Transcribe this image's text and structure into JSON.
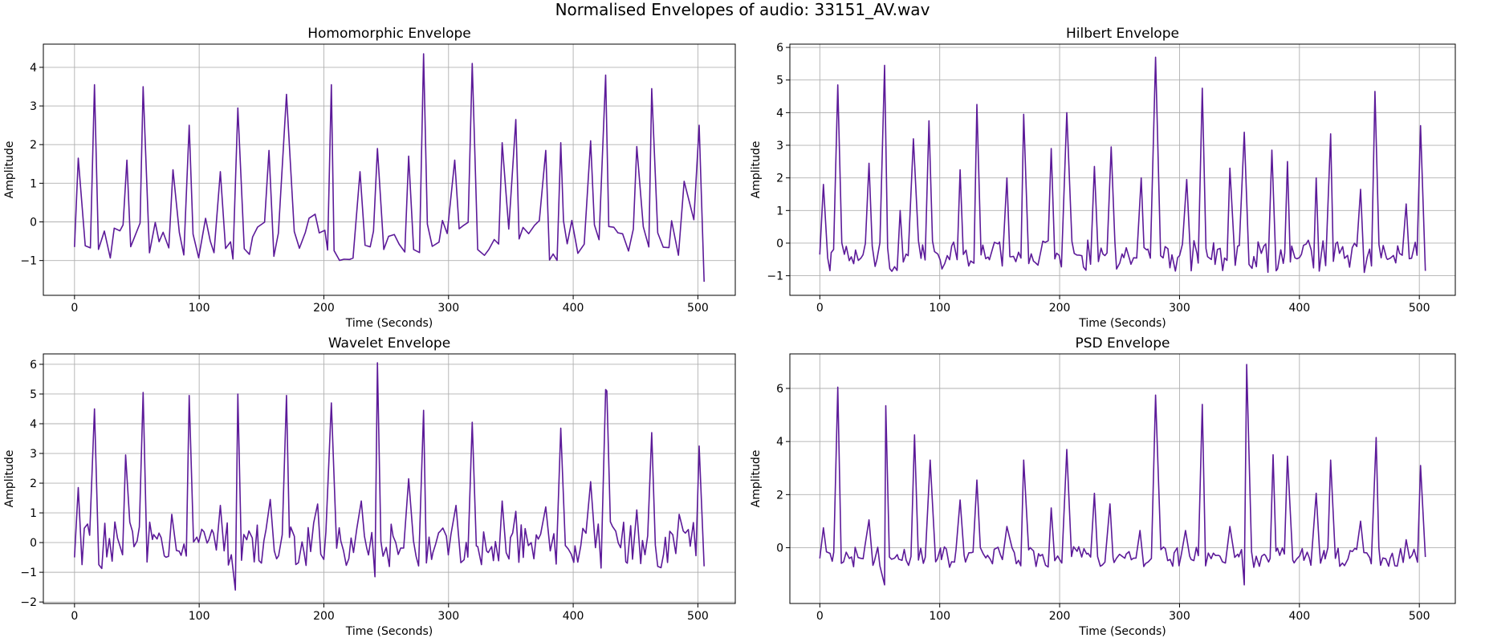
{
  "suptitle": "Normalised Envelopes of audio: 33151_AV.wav",
  "colors": {
    "line": "#5c1a99",
    "grid": "#b0b0b0"
  },
  "chart_data": [
    {
      "type": "line",
      "title": "Homomorphic Envelope",
      "xlabel": "Time (Seconds)",
      "ylabel": "Amplitude",
      "xlim": [
        -25,
        530
      ],
      "ylim": [
        -1.9,
        4.6
      ],
      "xticks": [
        0,
        100,
        200,
        300,
        400,
        500
      ],
      "yticks": [
        -1,
        0,
        1,
        2,
        3,
        4
      ],
      "grid": true,
      "baseline": {
        "t_start": 0,
        "t_end": 505,
        "step": 4,
        "y_low": -1.0,
        "y_high": 0.1
      },
      "peaks": [
        {
          "x": 0,
          "y": -0.65
        },
        {
          "x": 3,
          "y": 1.65
        },
        {
          "x": 16,
          "y": 3.55
        },
        {
          "x": 42,
          "y": 1.6
        },
        {
          "x": 55,
          "y": 3.5
        },
        {
          "x": 79,
          "y": 1.35
        },
        {
          "x": 92,
          "y": 2.5
        },
        {
          "x": 117,
          "y": 1.3
        },
        {
          "x": 131,
          "y": 2.95
        },
        {
          "x": 156,
          "y": 1.85
        },
        {
          "x": 170,
          "y": 3.3
        },
        {
          "x": 193,
          "y": 0.2
        },
        {
          "x": 206,
          "y": 3.55
        },
        {
          "x": 229,
          "y": 1.3
        },
        {
          "x": 243,
          "y": 1.9
        },
        {
          "x": 268,
          "y": 1.7
        },
        {
          "x": 280,
          "y": 4.35
        },
        {
          "x": 305,
          "y": 1.6
        },
        {
          "x": 319,
          "y": 4.1
        },
        {
          "x": 343,
          "y": 2.05
        },
        {
          "x": 354,
          "y": 2.65
        },
        {
          "x": 378,
          "y": 1.85
        },
        {
          "x": 390,
          "y": 2.05
        },
        {
          "x": 414,
          "y": 2.1
        },
        {
          "x": 426,
          "y": 3.8
        },
        {
          "x": 451,
          "y": 1.95
        },
        {
          "x": 463,
          "y": 3.45
        },
        {
          "x": 489,
          "y": 1.05
        },
        {
          "x": 501,
          "y": 2.5
        },
        {
          "x": 505,
          "y": -1.55
        }
      ]
    },
    {
      "type": "line",
      "title": "Hilbert Envelope",
      "xlabel": "Time (Seconds)",
      "ylabel": "Amplitude",
      "xlim": [
        -25,
        530
      ],
      "ylim": [
        -1.6,
        6.1
      ],
      "xticks": [
        0,
        100,
        200,
        300,
        400,
        500
      ],
      "yticks": [
        -1,
        0,
        1,
        2,
        3,
        4,
        5,
        6
      ],
      "grid": true,
      "baseline": {
        "t_start": 0,
        "t_end": 505,
        "step": 2,
        "y_low": -0.9,
        "y_high": 0.1
      },
      "peaks": [
        {
          "x": 0,
          "y": -0.35
        },
        {
          "x": 3,
          "y": 1.8
        },
        {
          "x": 15,
          "y": 4.85
        },
        {
          "x": 41,
          "y": 2.45
        },
        {
          "x": 54,
          "y": 5.45
        },
        {
          "x": 67,
          "y": 1.0
        },
        {
          "x": 78,
          "y": 3.2
        },
        {
          "x": 91,
          "y": 3.75
        },
        {
          "x": 117,
          "y": 2.25
        },
        {
          "x": 131,
          "y": 4.25
        },
        {
          "x": 156,
          "y": 2.0
        },
        {
          "x": 170,
          "y": 3.95
        },
        {
          "x": 193,
          "y": 2.9
        },
        {
          "x": 206,
          "y": 4.0
        },
        {
          "x": 229,
          "y": 2.35
        },
        {
          "x": 243,
          "y": 2.95
        },
        {
          "x": 268,
          "y": 2.0
        },
        {
          "x": 280,
          "y": 5.7
        },
        {
          "x": 306,
          "y": 1.95
        },
        {
          "x": 319,
          "y": 4.75
        },
        {
          "x": 342,
          "y": 2.3
        },
        {
          "x": 354,
          "y": 3.4
        },
        {
          "x": 377,
          "y": 2.85
        },
        {
          "x": 390,
          "y": 2.5
        },
        {
          "x": 414,
          "y": 2.0
        },
        {
          "x": 426,
          "y": 3.35
        },
        {
          "x": 451,
          "y": 1.65
        },
        {
          "x": 463,
          "y": 4.65
        },
        {
          "x": 489,
          "y": 1.2
        },
        {
          "x": 501,
          "y": 3.6
        },
        {
          "x": 505,
          "y": -0.85
        }
      ]
    },
    {
      "type": "line",
      "title": "Wavelet Envelope",
      "xlabel": "Time (Seconds)",
      "ylabel": "Amplitude",
      "xlim": [
        -25,
        530
      ],
      "ylim": [
        -2.05,
        6.35
      ],
      "xticks": [
        0,
        100,
        200,
        300,
        400,
        500
      ],
      "yticks": [
        -2,
        -1,
        0,
        1,
        2,
        3,
        4,
        5,
        6
      ],
      "grid": true,
      "baseline": {
        "t_start": 0,
        "t_end": 505,
        "step": 2,
        "y_low": -0.9,
        "y_high": 0.7
      },
      "peaks": [
        {
          "x": 0,
          "y": -0.5
        },
        {
          "x": 3,
          "y": 1.85
        },
        {
          "x": 16,
          "y": 4.5
        },
        {
          "x": 41,
          "y": 2.95
        },
        {
          "x": 55,
          "y": 5.05
        },
        {
          "x": 78,
          "y": 0.95
        },
        {
          "x": 92,
          "y": 4.95
        },
        {
          "x": 117,
          "y": 1.25
        },
        {
          "x": 129,
          "y": -1.6
        },
        {
          "x": 131,
          "y": 5.0
        },
        {
          "x": 157,
          "y": 1.45
        },
        {
          "x": 170,
          "y": 4.95
        },
        {
          "x": 195,
          "y": 1.3
        },
        {
          "x": 206,
          "y": 4.7
        },
        {
          "x": 230,
          "y": 1.4
        },
        {
          "x": 241,
          "y": -1.15
        },
        {
          "x": 243,
          "y": 6.05
        },
        {
          "x": 268,
          "y": 2.15
        },
        {
          "x": 280,
          "y": 4.45
        },
        {
          "x": 306,
          "y": 1.25
        },
        {
          "x": 319,
          "y": 4.05
        },
        {
          "x": 343,
          "y": 1.4
        },
        {
          "x": 354,
          "y": 1.05
        },
        {
          "x": 378,
          "y": 1.2
        },
        {
          "x": 390,
          "y": 3.85
        },
        {
          "x": 414,
          "y": 2.05
        },
        {
          "x": 426,
          "y": 5.15
        },
        {
          "x": 427,
          "y": 5.1
        },
        {
          "x": 451,
          "y": 1.1
        },
        {
          "x": 463,
          "y": 3.7
        },
        {
          "x": 485,
          "y": 0.95
        },
        {
          "x": 501,
          "y": 3.25
        },
        {
          "x": 505,
          "y": -0.8
        }
      ]
    },
    {
      "type": "line",
      "title": "PSD Envelope",
      "xlabel": "Time (Seconds)",
      "ylabel": "Amplitude",
      "xlim": [
        -25,
        530
      ],
      "ylim": [
        -2.1,
        7.3
      ],
      "xticks": [
        0,
        100,
        200,
        300,
        400,
        500
      ],
      "yticks": [
        0,
        2,
        4,
        6
      ],
      "grid": true,
      "baseline": {
        "t_start": 0,
        "t_end": 505,
        "step": 2,
        "y_low": -0.75,
        "y_high": 0.05
      },
      "peaks": [
        {
          "x": 0,
          "y": -0.4
        },
        {
          "x": 3,
          "y": 0.75
        },
        {
          "x": 15,
          "y": 6.05
        },
        {
          "x": 41,
          "y": 1.05
        },
        {
          "x": 54,
          "y": -1.4
        },
        {
          "x": 55,
          "y": 5.35
        },
        {
          "x": 79,
          "y": 4.25
        },
        {
          "x": 92,
          "y": 3.3
        },
        {
          "x": 117,
          "y": 1.8
        },
        {
          "x": 131,
          "y": 2.55
        },
        {
          "x": 156,
          "y": 0.8
        },
        {
          "x": 170,
          "y": 3.3
        },
        {
          "x": 193,
          "y": 1.5
        },
        {
          "x": 206,
          "y": 3.7
        },
        {
          "x": 229,
          "y": 2.05
        },
        {
          "x": 242,
          "y": 1.65
        },
        {
          "x": 267,
          "y": 0.65
        },
        {
          "x": 280,
          "y": 5.75
        },
        {
          "x": 305,
          "y": 0.65
        },
        {
          "x": 319,
          "y": 5.4
        },
        {
          "x": 342,
          "y": 0.8
        },
        {
          "x": 354,
          "y": -1.4
        },
        {
          "x": 356,
          "y": 6.9
        },
        {
          "x": 378,
          "y": 3.5
        },
        {
          "x": 390,
          "y": 3.45
        },
        {
          "x": 414,
          "y": 2.05
        },
        {
          "x": 426,
          "y": 3.3
        },
        {
          "x": 451,
          "y": 1.0
        },
        {
          "x": 464,
          "y": 4.15
        },
        {
          "x": 489,
          "y": 0.3
        },
        {
          "x": 501,
          "y": 3.1
        },
        {
          "x": 505,
          "y": -0.35
        }
      ]
    }
  ]
}
